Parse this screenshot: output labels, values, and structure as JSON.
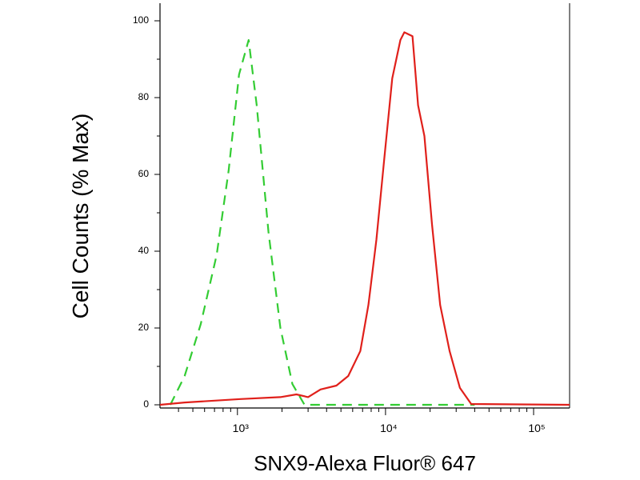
{
  "chart_data": {
    "type": "line",
    "x_label": "SNX9-Alexa Fluor® 647",
    "y_label": "Cell Counts (% Max)",
    "xscale": "log",
    "xlim": [
      300,
      175000
    ],
    "ylim": [
      0,
      100
    ],
    "xticks": [
      {
        "value": 1000,
        "label": "10³"
      },
      {
        "value": 10000,
        "label": "10⁴"
      },
      {
        "value": 100000,
        "label": "10⁵"
      }
    ],
    "xminorticks": [
      400,
      500,
      600,
      700,
      800,
      900,
      2000,
      3000,
      4000,
      5000,
      6000,
      7000,
      8000,
      9000,
      20000,
      30000,
      40000,
      50000,
      60000,
      70000,
      80000,
      90000
    ],
    "yticks": [
      0,
      20,
      40,
      60,
      80,
      100
    ],
    "yminorticks": [
      10,
      30,
      50,
      70,
      90
    ],
    "series": [
      {
        "color": "#33cc33",
        "dash": true,
        "x": [
          352,
          440,
          565,
          724,
          872,
          1025,
          1190,
          1350,
          1620,
          1950,
          2350,
          2840,
          40000
        ],
        "values": [
          0,
          7.5,
          21,
          39,
          61,
          86,
          95,
          78,
          45,
          20,
          5.4,
          0,
          0
        ]
      },
      {
        "color": "#e0201b",
        "dash": false,
        "x": [
          300,
          440,
          1050,
          1950,
          2500,
          3000,
          3640,
          4660,
          5600,
          6760,
          7660,
          8680,
          9800,
          11100,
          12600,
          13400,
          15200,
          16600,
          18300,
          20600,
          23400,
          27100,
          31800,
          37900,
          175000
        ],
        "values": [
          0,
          0.6,
          1.5,
          2,
          2.7,
          2,
          4,
          5,
          7.5,
          14,
          26,
          43,
          64,
          85,
          95,
          97,
          96,
          78,
          70,
          47,
          26,
          14,
          4.4,
          0.2,
          0
        ]
      }
    ]
  }
}
